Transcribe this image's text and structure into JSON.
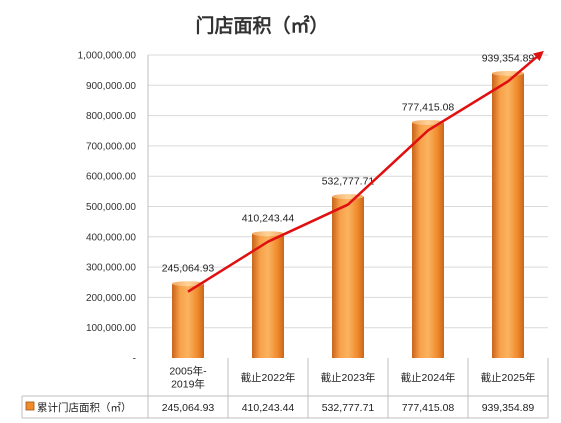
{
  "chart_data": {
    "type": "bar",
    "title": "门店面积（㎡）",
    "categories": [
      [
        "2005年-",
        "2019年"
      ],
      [
        "截止2022年"
      ],
      [
        "截止2023年"
      ],
      [
        "截止2024年"
      ],
      [
        "截止2025年"
      ]
    ],
    "series": [
      {
        "name": "累计门店面积（㎡）",
        "values": [
          245064.93,
          410243.44,
          532777.71,
          777415.08,
          939354.89
        ],
        "labels": [
          "245,064.93",
          "410,243.44",
          "532,777.71",
          "777,415.08",
          "939,354.89"
        ],
        "color": "#f28c28"
      }
    ],
    "trend_arrow_color": "#e01010",
    "ylim": [
      0,
      1000000
    ],
    "yticks": [
      "-",
      "100,000.00",
      "200,000.00",
      "300,000.00",
      "400,000.00",
      "500,000.00",
      "600,000.00",
      "700,000.00",
      "800,000.00",
      "900,000.00",
      "1,000,000.00"
    ],
    "grid": true,
    "legend": "data-table",
    "data_table": true
  }
}
